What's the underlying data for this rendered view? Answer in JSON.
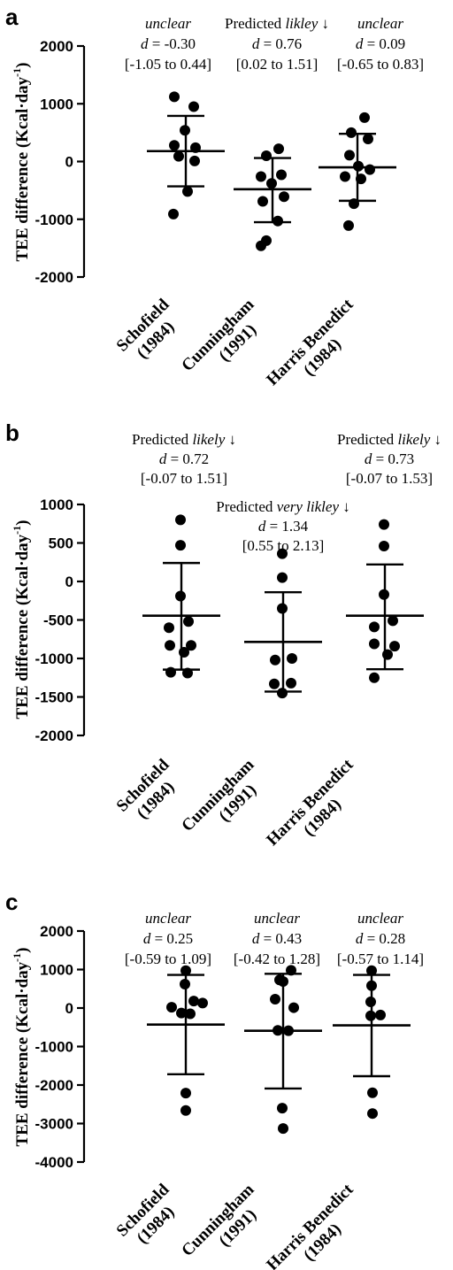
{
  "chart_data": [
    {
      "panel": "a",
      "type": "scatter",
      "ylabel": "TEE difference (Kcal·day",
      "ylabel_sup": "-1",
      "ylim": [
        -2000,
        2000
      ],
      "yticks": [
        2000,
        1000,
        0,
        -1000,
        -2000
      ],
      "tick_labels": [
        "2000",
        "1000",
        "0",
        "-1000",
        "-2000"
      ],
      "categories": [
        {
          "line1": "Schofield",
          "line2": "(1984)"
        },
        {
          "line1": "Cunningham",
          "line2": "(1991)"
        },
        {
          "line1": "Harris Benedict",
          "line2": "(1984)"
        }
      ],
      "groups": [
        {
          "mean": 180,
          "sd_upper": 790,
          "sd_lower": -430,
          "points": [
            [
              -0.13,
              1120
            ],
            [
              0.09,
              950
            ],
            [
              -0.01,
              540
            ],
            [
              -0.13,
              280
            ],
            [
              0.1,
              10
            ],
            [
              -0.08,
              90
            ],
            [
              0.11,
              240
            ],
            [
              0.02,
              -520
            ],
            [
              -0.14,
              -910
            ]
          ],
          "annotation": [
            {
              "prefix": "",
              "italic": "unclear",
              "suffix": ""
            },
            {
              "prefix": "",
              "italic": "d",
              "suffix": " = -0.30"
            },
            {
              "prefix": "[-1.05 to 0.44]",
              "italic": "",
              "suffix": ""
            }
          ]
        },
        {
          "mean": -480,
          "sd_upper": 60,
          "sd_lower": -1050,
          "points": [
            [
              -0.07,
              100
            ],
            [
              0.07,
              220
            ],
            [
              -0.13,
              -260
            ],
            [
              0.1,
              -230
            ],
            [
              -0.01,
              -380
            ],
            [
              0.13,
              -610
            ],
            [
              -0.11,
              -690
            ],
            [
              0.06,
              -1030
            ],
            [
              -0.07,
              -1370
            ],
            [
              -0.13,
              -1460
            ]
          ],
          "annotation": [
            {
              "prefix": "Predicted ",
              "italic": "likley",
              "suffix": " ↓"
            },
            {
              "prefix": "",
              "italic": "d",
              "suffix": " = 0.76"
            },
            {
              "prefix": "[0.02 to 1.51]",
              "italic": "",
              "suffix": ""
            }
          ]
        },
        {
          "mean": -100,
          "sd_upper": 480,
          "sd_lower": -680,
          "points": [
            [
              0.08,
              760
            ],
            [
              -0.07,
              500
            ],
            [
              0.12,
              390
            ],
            [
              -0.09,
              110
            ],
            [
              0.01,
              -80
            ],
            [
              0.14,
              -140
            ],
            [
              -0.14,
              -260
            ],
            [
              0.04,
              -300
            ],
            [
              -0.04,
              -730
            ],
            [
              -0.1,
              -1110
            ]
          ],
          "annotation": [
            {
              "prefix": "",
              "italic": "unclear",
              "suffix": ""
            },
            {
              "prefix": "",
              "italic": "d",
              "suffix": " = 0.09"
            },
            {
              "prefix": "[-0.65 to 0.83]",
              "italic": "",
              "suffix": ""
            }
          ]
        }
      ]
    },
    {
      "panel": "b",
      "type": "scatter",
      "ylabel": "TEE difference (Kcal·day",
      "ylabel_sup": "-1",
      "ylim": [
        -2000,
        1000
      ],
      "yticks": [
        1000,
        500,
        0,
        -500,
        -1000,
        -1500,
        -2000
      ],
      "tick_labels": [
        "1000",
        "500",
        "0",
        "-500",
        "-1000",
        "-1500",
        "-2000"
      ],
      "categories": [
        {
          "line1": "Schofield",
          "line2": "(1984)"
        },
        {
          "line1": "Cunningham",
          "line2": "(1991)"
        },
        {
          "line1": "Harris Benedict",
          "line2": "(1984)"
        }
      ],
      "groups": [
        {
          "mean": -445,
          "sd_upper": 240,
          "sd_lower": -1145,
          "points": [
            [
              -0.01,
              800
            ],
            [
              -0.01,
              470
            ],
            [
              -0.01,
              -190
            ],
            [
              0.08,
              -520
            ],
            [
              -0.14,
              -600
            ],
            [
              0.11,
              -830
            ],
            [
              -0.13,
              -830
            ],
            [
              0.03,
              -920
            ],
            [
              -0.12,
              -1180
            ],
            [
              0.07,
              -1190
            ]
          ],
          "annotation": [
            {
              "prefix": "Predicted ",
              "italic": "likely",
              "suffix": " ↓"
            },
            {
              "prefix": "",
              "italic": "d",
              "suffix": " = 0.72"
            },
            {
              "prefix": "[-0.07 to 1.51]",
              "italic": "",
              "suffix": ""
            }
          ]
        },
        {
          "mean": -785,
          "sd_upper": -140,
          "sd_lower": -1430,
          "points": [
            [
              -0.01,
              360
            ],
            [
              -0.01,
              50
            ],
            [
              -0.01,
              -350
            ],
            [
              -0.09,
              -1020
            ],
            [
              0.1,
              -1000
            ],
            [
              -0.1,
              -1330
            ],
            [
              0.09,
              -1320
            ],
            [
              -0.01,
              -1450
            ]
          ],
          "annotation": [
            {
              "prefix": "Predicted ",
              "italic": "very likley",
              "suffix": " ↓"
            },
            {
              "prefix": "",
              "italic": "d",
              "suffix": " = 1.34"
            },
            {
              "prefix": "[0.55 to 2.13]",
              "italic": "",
              "suffix": ""
            }
          ]
        },
        {
          "mean": -445,
          "sd_upper": 220,
          "sd_lower": -1140,
          "points": [
            [
              -0.01,
              740
            ],
            [
              -0.01,
              460
            ],
            [
              -0.01,
              -170
            ],
            [
              0.09,
              -510
            ],
            [
              -0.12,
              -590
            ],
            [
              0.11,
              -840
            ],
            [
              -0.12,
              -810
            ],
            [
              0.03,
              -950
            ],
            [
              -0.12,
              -1250
            ]
          ],
          "annotation": [
            {
              "prefix": "Predicted ",
              "italic": "likely",
              "suffix": " ↓"
            },
            {
              "prefix": "",
              "italic": "d",
              "suffix": " = 0.73"
            },
            {
              "prefix": "[-0.07 to 1.53]",
              "italic": "",
              "suffix": ""
            }
          ]
        }
      ]
    },
    {
      "panel": "c",
      "type": "scatter",
      "ylabel": "TEE difference (Kcal·day",
      "ylabel_sup": "-1",
      "ylim": [
        -4000,
        2000
      ],
      "yticks": [
        2000,
        1000,
        0,
        -1000,
        -2000,
        -3000,
        -4000
      ],
      "tick_labels": [
        "2000",
        "1000",
        "0",
        "-1000",
        "-2000",
        "-3000",
        "-4000"
      ],
      "categories": [
        {
          "line1": "Schofield",
          "line2": "(1984)"
        },
        {
          "line1": "Cunningham",
          "line2": "(1991)"
        },
        {
          "line1": "Harris Benedict",
          "line2": "(1984)"
        }
      ],
      "groups": [
        {
          "mean": -430,
          "sd_upper": 860,
          "sd_lower": -1720,
          "points": [
            [
              0.0,
              970
            ],
            [
              -0.01,
              620
            ],
            [
              0.19,
              130
            ],
            [
              -0.16,
              20
            ],
            [
              0.09,
              180
            ],
            [
              -0.05,
              -130
            ],
            [
              0.05,
              -150
            ],
            [
              0.0,
              -2210
            ],
            [
              0.0,
              -2660
            ]
          ],
          "annotation": [
            {
              "prefix": "",
              "italic": "unclear",
              "suffix": ""
            },
            {
              "prefix": "",
              "italic": "d",
              "suffix": " = 0.25"
            },
            {
              "prefix": "[-0.59 to 1.09]",
              "italic": "",
              "suffix": ""
            }
          ]
        },
        {
          "mean": -590,
          "sd_upper": 890,
          "sd_lower": -2090,
          "points": [
            [
              0.09,
              980
            ],
            [
              -0.04,
              730
            ],
            [
              0.0,
              690
            ],
            [
              -0.09,
              230
            ],
            [
              0.12,
              10
            ],
            [
              -0.06,
              -580
            ],
            [
              0.06,
              -590
            ],
            [
              -0.01,
              -2600
            ],
            [
              0.0,
              -3130
            ]
          ],
          "annotation": [
            {
              "prefix": "",
              "italic": "unclear",
              "suffix": ""
            },
            {
              "prefix": "",
              "italic": "d",
              "suffix": " = 0.43"
            },
            {
              "prefix": "[-0.42 to 1.28]",
              "italic": "",
              "suffix": ""
            }
          ]
        },
        {
          "mean": -450,
          "sd_upper": 860,
          "sd_lower": -1770,
          "points": [
            [
              0.0,
              970
            ],
            [
              0.0,
              580
            ],
            [
              -0.01,
              160
            ],
            [
              0.1,
              -180
            ],
            [
              -0.01,
              -200
            ],
            [
              0.01,
              -2200
            ],
            [
              0.01,
              -2740
            ]
          ],
          "annotation": [
            {
              "prefix": "",
              "italic": "unclear",
              "suffix": ""
            },
            {
              "prefix": "",
              "italic": "d",
              "suffix": " = 0.28"
            },
            {
              "prefix": "[-0.57 to 1.14]",
              "italic": "",
              "suffix": ""
            }
          ]
        }
      ]
    }
  ]
}
